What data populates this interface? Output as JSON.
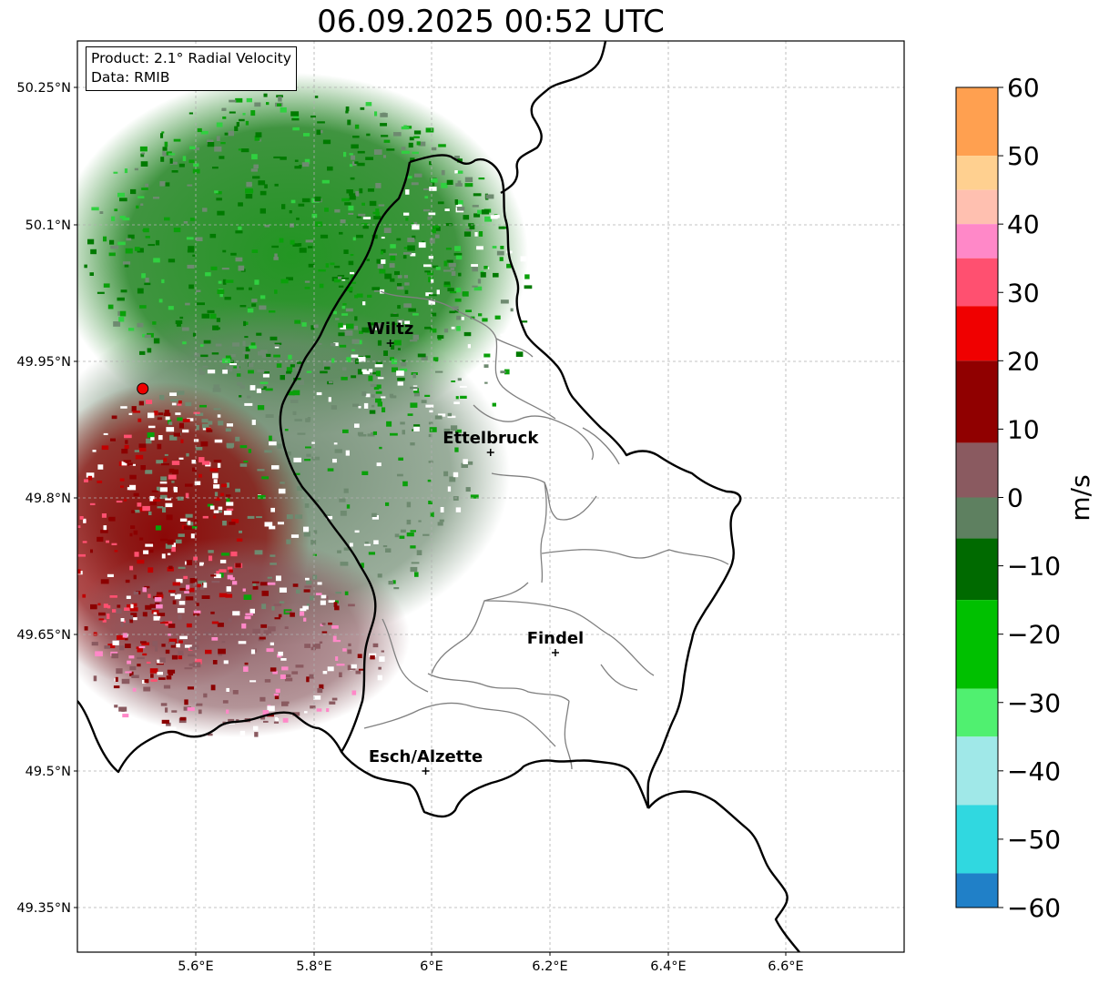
{
  "title": "06.09.2025 00:52 UTC",
  "info": {
    "product": "Product: 2.1° Radial Velocity",
    "source": "Data: RMIB"
  },
  "axes": {
    "lon_ticks": [
      "5.6°E",
      "5.8°E",
      "6°E",
      "6.2°E",
      "6.4°E",
      "6.6°E"
    ],
    "lat_ticks": [
      "50.25°N",
      "50.1°N",
      "49.95°N",
      "49.8°N",
      "49.65°N",
      "49.5°N",
      "49.35°N"
    ]
  },
  "cities": [
    {
      "name": "Wiltz",
      "lon": 5.93,
      "lat": 49.97
    },
    {
      "name": "Ettelbruck",
      "lon": 6.1,
      "lat": 49.85
    },
    {
      "name": "Findel",
      "lon": 6.21,
      "lat": 49.63
    },
    {
      "name": "Esch/Alzette",
      "lon": 5.99,
      "lat": 49.5
    }
  ],
  "radar_site": {
    "lon": 5.51,
    "lat": 49.92,
    "color": "#ee0000"
  },
  "colorbar": {
    "unit": "m/s",
    "ticks": [
      "60",
      "50",
      "40",
      "30",
      "20",
      "10",
      "0",
      "−10",
      "−20",
      "−30",
      "−40",
      "−50",
      "−60"
    ],
    "min": -60,
    "max": 60,
    "bands": [
      {
        "from": 50,
        "to": 60,
        "color": "#ffa050"
      },
      {
        "from": 45,
        "to": 50,
        "color": "#ffd090"
      },
      {
        "from": 40,
        "to": 45,
        "color": "#ffc0b0"
      },
      {
        "from": 35,
        "to": 40,
        "color": "#ff88c8"
      },
      {
        "from": 28,
        "to": 35,
        "color": "#ff5070"
      },
      {
        "from": 20,
        "to": 28,
        "color": "#f00000"
      },
      {
        "from": 8,
        "to": 20,
        "color": "#900000"
      },
      {
        "from": 0,
        "to": 8,
        "color": "#8a5a60"
      },
      {
        "from": -6,
        "to": 0,
        "color": "#5e8060"
      },
      {
        "from": -15,
        "to": -6,
        "color": "#006a00"
      },
      {
        "from": -28,
        "to": -15,
        "color": "#00c000"
      },
      {
        "from": -35,
        "to": -28,
        "color": "#50f070"
      },
      {
        "from": -45,
        "to": -35,
        "color": "#a0e8e8"
      },
      {
        "from": -55,
        "to": -45,
        "color": "#30d8e0"
      },
      {
        "from": -60,
        "to": -55,
        "color": "#2080c8"
      }
    ]
  },
  "colors": {
    "border": "#000000",
    "canton": "#808080",
    "grid": "#b0b0b0",
    "velocity_green": "#007a00",
    "velocity_gray": "#6e8a70",
    "velocity_red": "#8b0000",
    "velocity_mauve": "#8a5a60"
  }
}
